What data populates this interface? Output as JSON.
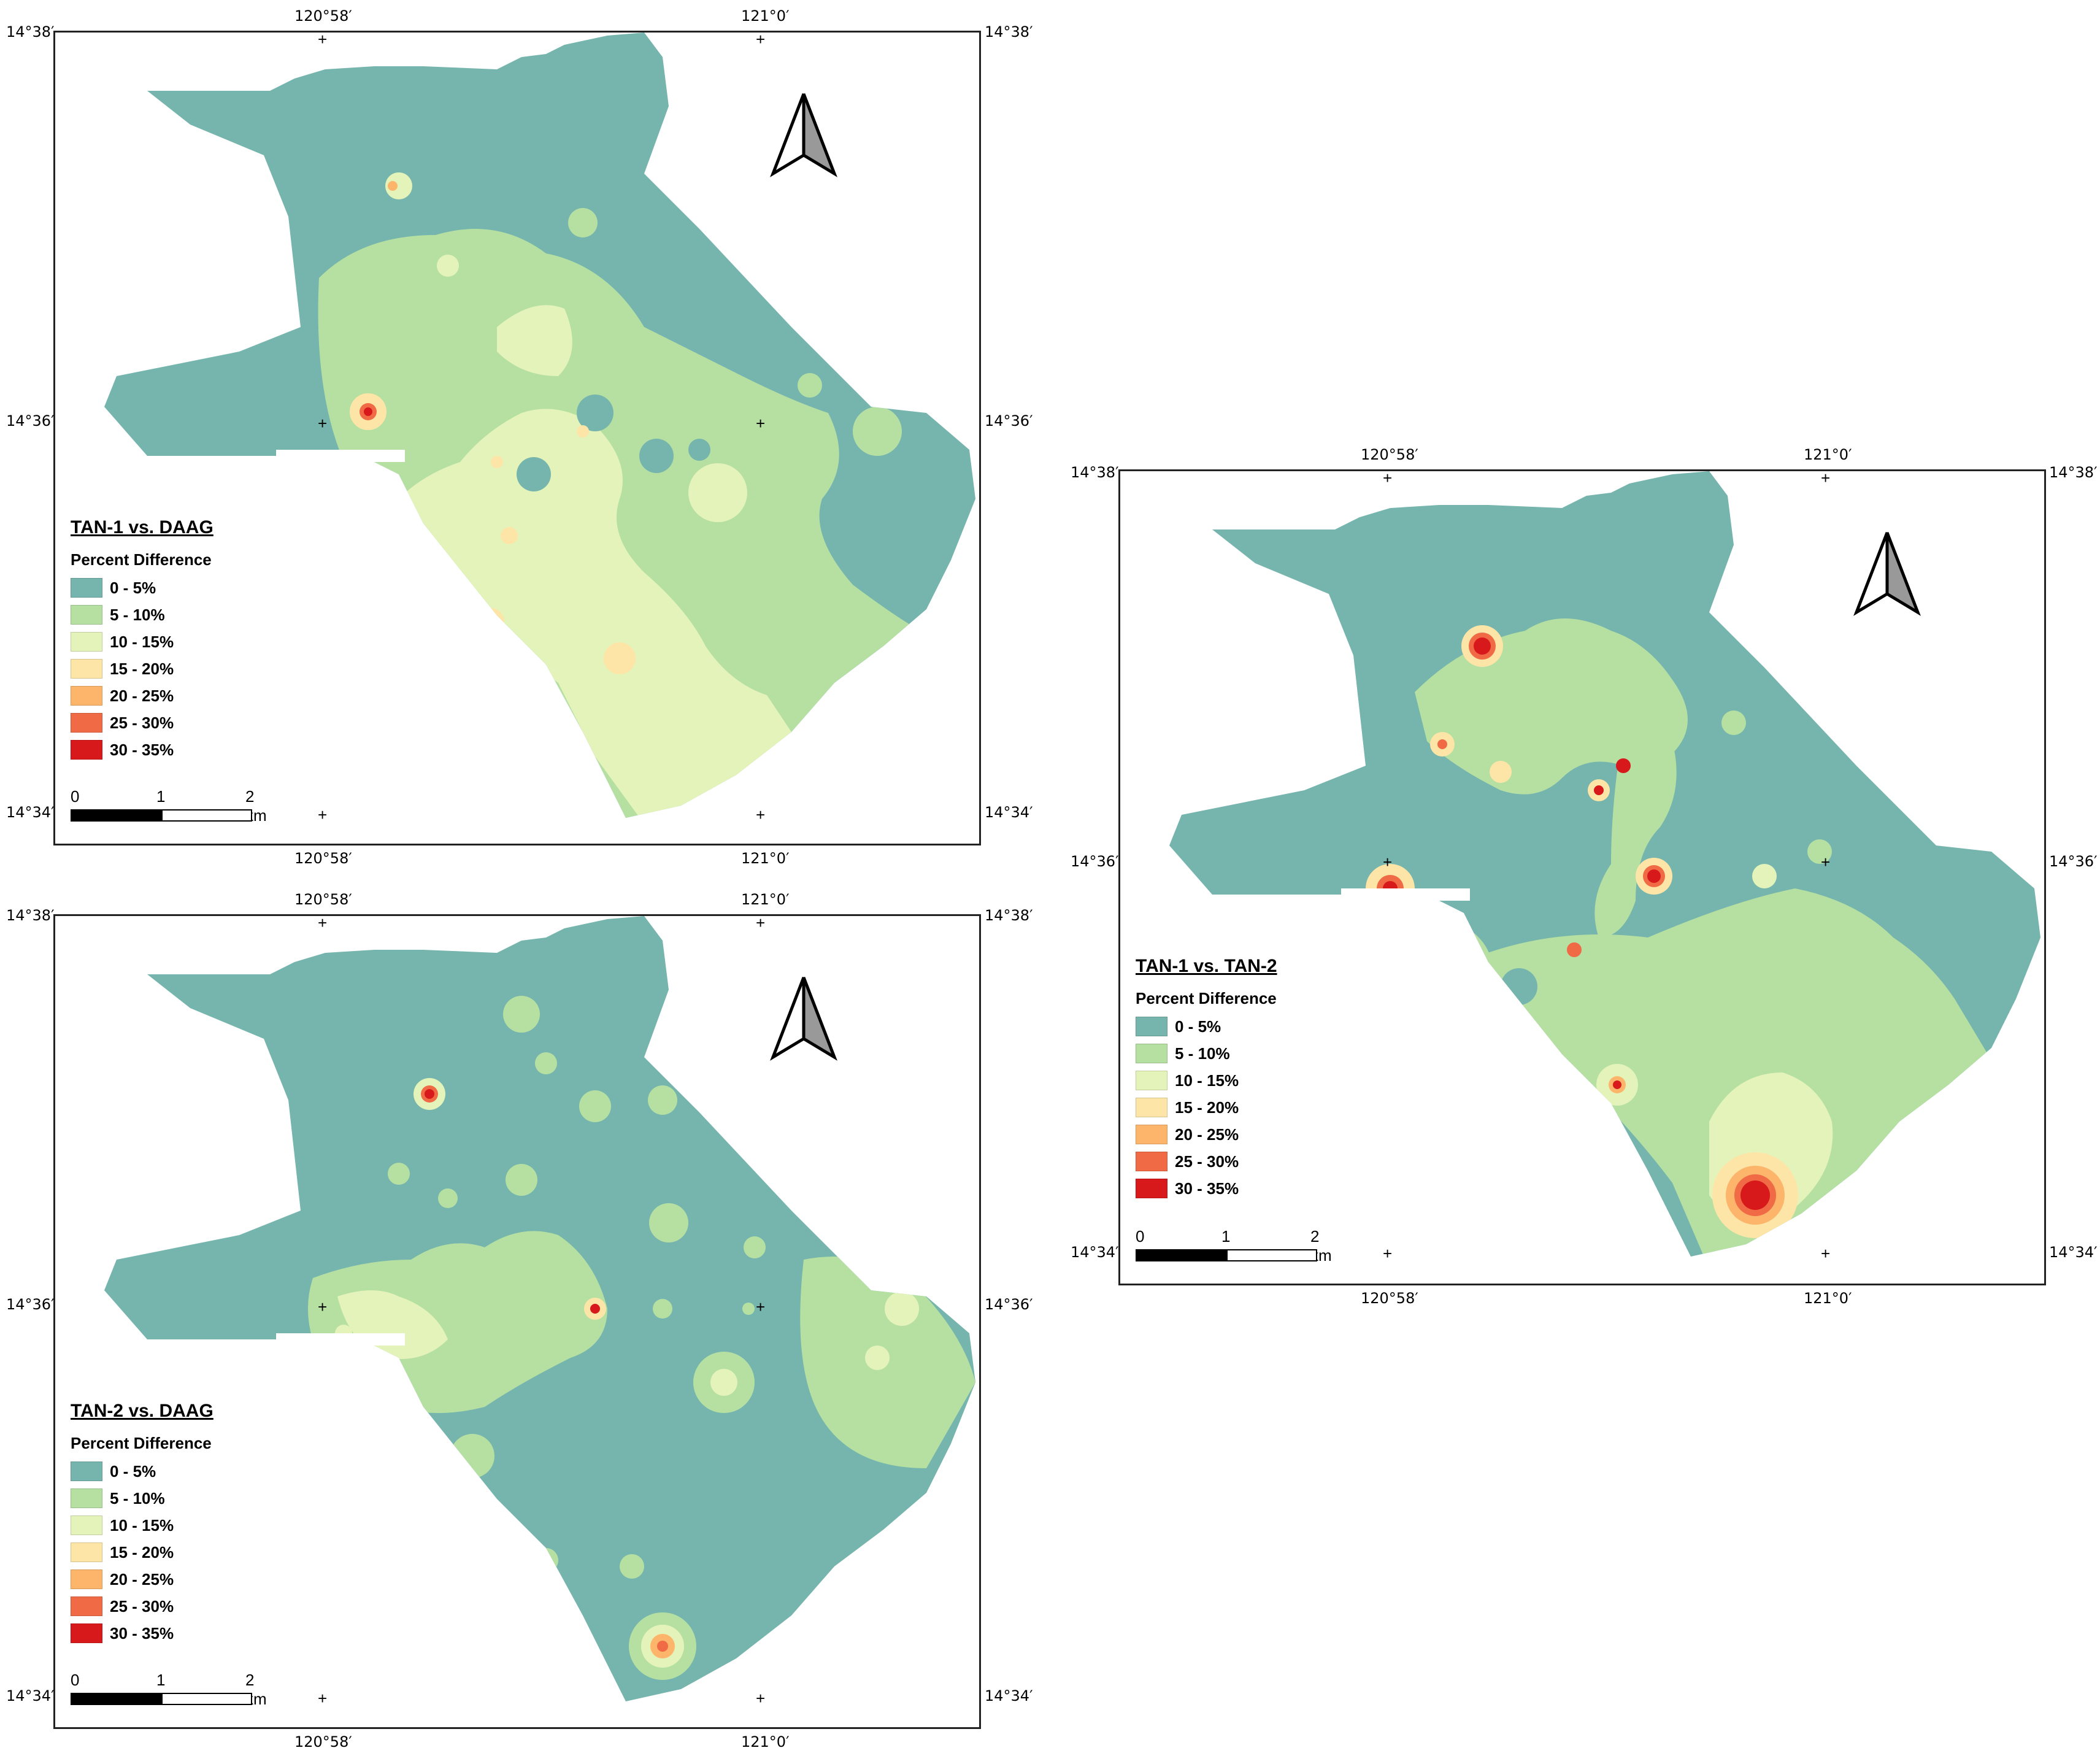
{
  "panels": [
    {
      "id": "tan1-daag",
      "title": "TAN-1 vs. DAAG",
      "variant": "A",
      "ticks": {
        "top": [
          "120°58′",
          "121°0′"
        ],
        "bottom": [
          "120°58′",
          "121°0′"
        ],
        "left": [
          "14°38′",
          "14°36′",
          "14°34′"
        ],
        "right": [
          "14°38′",
          "14°36′",
          "14°34′"
        ]
      }
    },
    {
      "id": "tan2-daag",
      "title": "TAN-2 vs. DAAG",
      "variant": "B",
      "ticks": {
        "top": [
          "120°58′",
          "121°0′"
        ],
        "bottom": [
          "120°58′",
          "121°0′"
        ],
        "left": [
          "14°38′",
          "14°36′",
          "14°34′"
        ],
        "right": [
          "14°38′",
          "14°36′",
          "14°34′"
        ]
      }
    },
    {
      "id": "tan1-tan2",
      "title": "TAN-1 vs. TAN-2",
      "variant": "C",
      "ticks": {
        "top": [
          "120°58′",
          "121°0′"
        ],
        "bottom": [
          "120°58′",
          "121°0′"
        ],
        "left": [
          "14°38′",
          "14°36′",
          "14°34′"
        ],
        "right": [
          "14°38′",
          "14°36′",
          "14°34′"
        ]
      }
    }
  ],
  "legend": {
    "subtitle": "Percent Difference",
    "classes": [
      {
        "label": "0 - 5%",
        "color": "#76b5ad"
      },
      {
        "label": "5 - 10%",
        "color": "#b6e0a2"
      },
      {
        "label": "10 - 15%",
        "color": "#e4f3b9"
      },
      {
        "label": "15 - 20%",
        "color": "#fde5a7"
      },
      {
        "label": "20 - 25%",
        "color": "#fcb56a"
      },
      {
        "label": "25 - 30%",
        "color": "#ef6a45"
      },
      {
        "label": "30 - 35%",
        "color": "#d7191c"
      }
    ]
  },
  "scale_bar": {
    "labels": [
      "0",
      "1",
      "2 km"
    ]
  },
  "icons": {
    "north_arrow": "north-arrow-icon"
  }
}
